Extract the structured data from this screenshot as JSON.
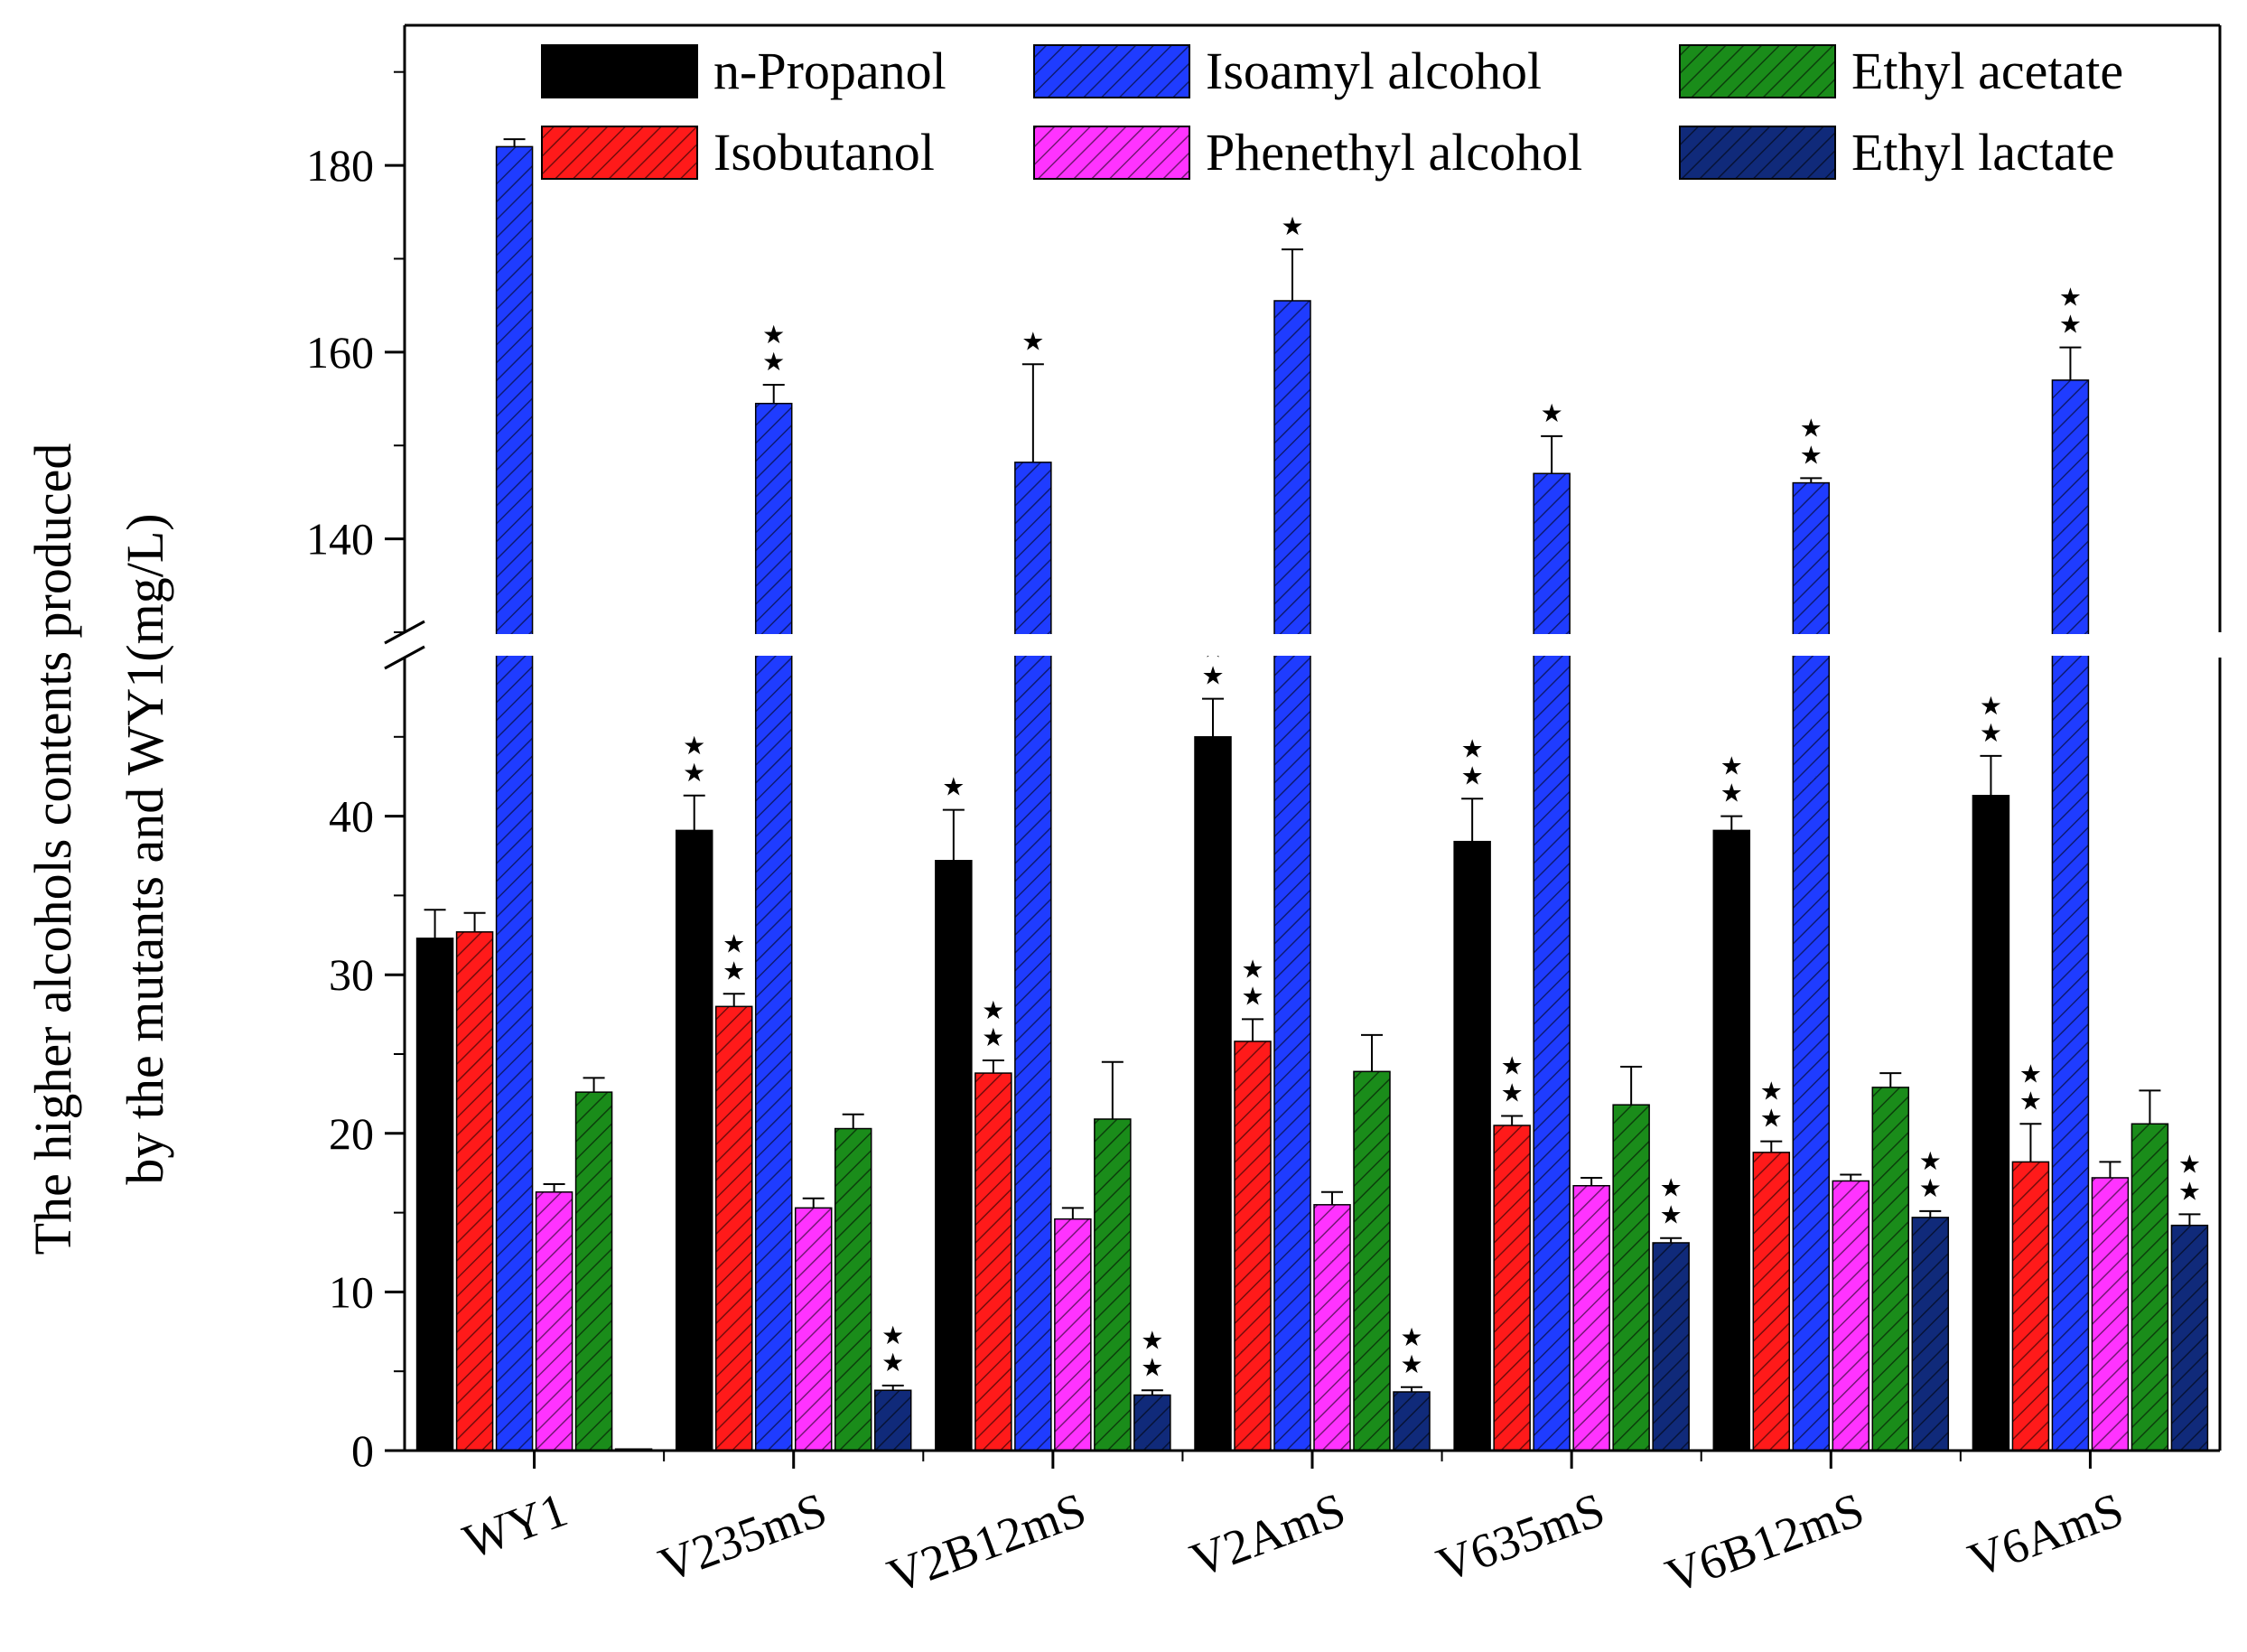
{
  "chart_data": {
    "type": "bar",
    "ylabel_line1": "The higher alcohols contents produced",
    "ylabel_line2": "by the mutants and WY1(mg/L)",
    "categories": [
      "WY1",
      "V235mS",
      "V2B12mS",
      "V2AmS",
      "V635mS",
      "V6B12mS",
      "V6AmS"
    ],
    "y_axis_broken": true,
    "ylim_lower": [
      0,
      50
    ],
    "ylim_upper": [
      130,
      195
    ],
    "yticks_lower": [
      0,
      10,
      20,
      30,
      40
    ],
    "yticks_upper": [
      140,
      160,
      180
    ],
    "legend_position": "top",
    "series": [
      {
        "name": "n-Propanol",
        "color": "#000000",
        "hatched": false,
        "values": [
          32.3,
          39.1,
          37.2,
          45.0,
          38.4,
          39.1,
          41.3
        ],
        "errors": [
          1.8,
          2.2,
          3.2,
          2.4,
          2.7,
          0.9,
          2.5
        ],
        "marks": [
          "",
          "★★",
          "★",
          "★★",
          "★★",
          "★★",
          "★★"
        ]
      },
      {
        "name": "Isobutanol",
        "color": "#ff1a1a",
        "hatched": true,
        "values": [
          32.7,
          28.0,
          23.8,
          25.8,
          20.5,
          18.8,
          18.2
        ],
        "errors": [
          1.2,
          0.8,
          0.8,
          1.4,
          0.6,
          0.7,
          2.4
        ],
        "marks": [
          "",
          "★★",
          "★★",
          "★★",
          "★★",
          "★★",
          "★★"
        ]
      },
      {
        "name": "Isoamyl alcohol",
        "color": "#1f3cff",
        "hatched": true,
        "values": [
          182.0,
          154.5,
          148.2,
          165.5,
          147.0,
          146.0,
          157.0
        ],
        "errors": [
          0.8,
          2.0,
          10.5,
          5.5,
          4.0,
          0.5,
          3.5
        ],
        "marks": [
          "",
          "★★",
          "★",
          "★",
          "★",
          "★★",
          "★★"
        ]
      },
      {
        "name": "Phenethyl alcohol",
        "color": "#ff33ff",
        "hatched": true,
        "values": [
          16.3,
          15.3,
          14.6,
          15.5,
          16.7,
          17.0,
          17.2
        ],
        "errors": [
          0.5,
          0.6,
          0.7,
          0.8,
          0.5,
          0.4,
          1.0
        ],
        "marks": [
          "",
          "",
          "",
          "",
          "",
          "",
          ""
        ]
      },
      {
        "name": "Ethyl acetate",
        "color": "#1a8c1a",
        "hatched": true,
        "values": [
          22.6,
          20.3,
          20.9,
          23.9,
          21.8,
          22.9,
          20.6
        ],
        "errors": [
          0.9,
          0.9,
          3.6,
          2.3,
          2.4,
          0.9,
          2.1
        ],
        "marks": [
          "",
          "",
          "",
          "",
          "",
          "",
          ""
        ]
      },
      {
        "name": "Ethyl lactate",
        "color": "#102a7a",
        "hatched": true,
        "values": [
          0.1,
          3.8,
          3.5,
          3.7,
          13.1,
          14.7,
          14.2
        ],
        "errors": [
          0,
          0.3,
          0.3,
          0.3,
          0.3,
          0.4,
          0.7
        ],
        "marks": [
          "",
          "★★",
          "★★",
          "★★",
          "★★",
          "★★",
          "★★"
        ]
      }
    ]
  }
}
